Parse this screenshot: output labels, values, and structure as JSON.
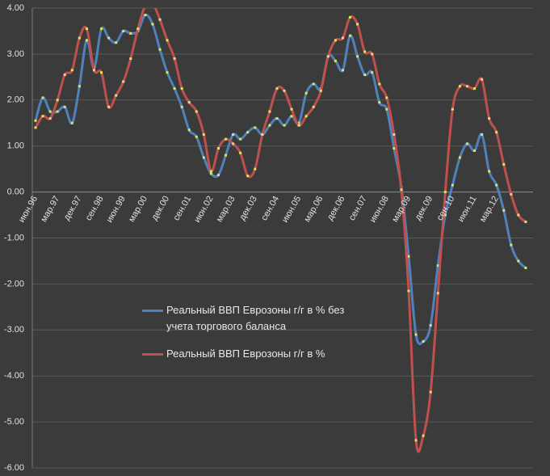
{
  "chart_data": {
    "type": "line",
    "categories": [
      "июн.96",
      null,
      null,
      "мар.97",
      null,
      null,
      "дек.97",
      null,
      null,
      "сен.98",
      null,
      null,
      "июн.99",
      null,
      null,
      "мар.00",
      null,
      null,
      "дек.00",
      null,
      null,
      "сен.01",
      null,
      null,
      "июн.02",
      null,
      null,
      "мар.03",
      null,
      null,
      "дек.03",
      null,
      null,
      "сен.04",
      null,
      null,
      "июн.05",
      null,
      null,
      "мар.06",
      null,
      null,
      "дек.06",
      null,
      null,
      "сен.07",
      null,
      null,
      "июн.08",
      null,
      null,
      "мар.09",
      null,
      null,
      "дек.09",
      null,
      null,
      "сен.10",
      null,
      null,
      "июн.11",
      null,
      null,
      "мар.12",
      null,
      null,
      null,
      null
    ],
    "series": [
      {
        "name": "Реальный ВВП Еврозоны г/г в % без учета торгового баланса",
        "color": "#4f81bd",
        "values": [
          1.55,
          2.05,
          1.75,
          1.75,
          1.85,
          1.5,
          2.3,
          3.3,
          2.7,
          3.55,
          3.35,
          3.25,
          3.5,
          3.45,
          3.5,
          3.85,
          3.65,
          3.1,
          2.6,
          2.25,
          1.85,
          1.35,
          1.2,
          0.75,
          0.4,
          0.37,
          0.8,
          1.25,
          1.15,
          1.3,
          1.4,
          1.25,
          1.45,
          1.6,
          1.45,
          1.65,
          1.5,
          2.15,
          2.35,
          2.25,
          2.95,
          2.85,
          2.65,
          3.4,
          2.95,
          2.55,
          2.6,
          1.95,
          1.8,
          0.95,
          0.1,
          -1.4,
          -3.1,
          -3.25,
          -2.9,
          -1.6,
          -0.5,
          0.15,
          0.75,
          1.05,
          0.9,
          1.25,
          0.45,
          0.15,
          -0.4,
          -1.15,
          -1.5,
          -1.65
        ]
      },
      {
        "name": "Реальный ВВП Еврозоны г/г в %",
        "color": "#c0504d",
        "values": [
          1.4,
          1.65,
          1.6,
          2.0,
          2.55,
          2.65,
          3.35,
          3.55,
          2.65,
          2.6,
          1.85,
          2.1,
          2.4,
          2.9,
          3.55,
          4.05,
          4.1,
          3.75,
          3.3,
          2.9,
          2.25,
          1.95,
          1.75,
          1.25,
          0.45,
          0.95,
          1.15,
          1.05,
          0.85,
          0.35,
          0.5,
          1.25,
          1.75,
          2.25,
          2.2,
          1.8,
          1.45,
          1.65,
          1.85,
          2.2,
          2.95,
          3.3,
          3.35,
          3.8,
          3.65,
          3.05,
          3.0,
          2.35,
          2.05,
          1.25,
          0.05,
          -2.15,
          -5.4,
          -5.3,
          -4.35,
          -2.2,
          0.0,
          1.8,
          2.3,
          2.3,
          2.25,
          2.45,
          1.6,
          1.3,
          0.6,
          -0.05,
          -0.5,
          -0.65
        ]
      }
    ],
    "marker_color": "#d9e36b",
    "ylim": [
      -6,
      4
    ],
    "yticks": [
      {
        "value": -6,
        "label": "-6.00"
      },
      {
        "value": -5,
        "label": "-5.00"
      },
      {
        "value": -4,
        "label": "-4.00"
      },
      {
        "value": -3,
        "label": "-3.00"
      },
      {
        "value": -2,
        "label": "-2.00"
      },
      {
        "value": -1,
        "label": "-1.00"
      },
      {
        "value": 0,
        "label": "0.00"
      },
      {
        "value": 1,
        "label": "1.00"
      },
      {
        "value": 2,
        "label": "2.00"
      },
      {
        "value": 3,
        "label": "3.00"
      },
      {
        "value": 4,
        "label": "4.00"
      }
    ],
    "grid": true
  }
}
